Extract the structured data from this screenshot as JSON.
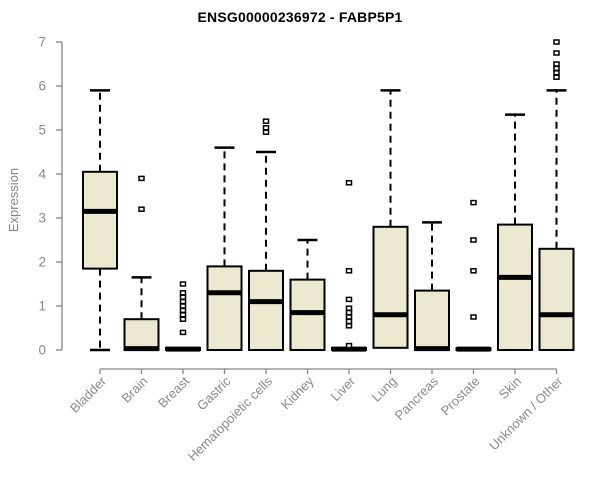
{
  "chart_data": {
    "type": "boxplot",
    "title": "ENSG00000236972 - FABP5P1",
    "ylabel": "Expression",
    "xlabel": "",
    "ylim": [
      0,
      7
    ],
    "yticks": [
      0,
      1,
      2,
      3,
      4,
      5,
      6,
      7
    ],
    "grid": false,
    "legend": null,
    "colors": {
      "box_fill": "#EDE8D0",
      "box_border": "#000000",
      "median": "#000000",
      "whisker": "#000000",
      "outlier_fill": "#ffffff",
      "axis": "#868686",
      "tick_text": "#8a8a8a",
      "title_text": "#000000"
    },
    "categories": [
      "Bladder",
      "Brain",
      "Breast",
      "Gastric",
      "Hematopoietic cells",
      "Kidney",
      "Liver",
      "Lung",
      "Pancreas",
      "Prostate",
      "Skin",
      "Unknown / Other"
    ],
    "boxes": [
      {
        "category": "Bladder",
        "min": 0,
        "q1": 1.85,
        "median": 3.15,
        "q3": 4.05,
        "max": 5.9,
        "outliers": []
      },
      {
        "category": "Brain",
        "min": 0,
        "q1": 0,
        "median": 0.03,
        "q3": 0.7,
        "max": 1.65,
        "outliers": [
          3.9,
          3.2
        ]
      },
      {
        "category": "Breast",
        "min": 0,
        "q1": 0,
        "median": 0.02,
        "q3": 0.05,
        "max": 0.05,
        "outliers": [
          1.5,
          1.3,
          1.2,
          1.1,
          1.0,
          0.9,
          0.8,
          0.7,
          0.4
        ]
      },
      {
        "category": "Gastric",
        "min": 0,
        "q1": 0,
        "median": 1.3,
        "q3": 1.9,
        "max": 4.6,
        "outliers": []
      },
      {
        "category": "Hematopoietic cells",
        "min": 0,
        "q1": 0,
        "median": 1.1,
        "q3": 1.8,
        "max": 4.5,
        "outliers": [
          5.2,
          5.05,
          4.95
        ]
      },
      {
        "category": "Kidney",
        "min": 0,
        "q1": 0,
        "median": 0.85,
        "q3": 1.6,
        "max": 2.5,
        "outliers": []
      },
      {
        "category": "Liver",
        "min": 0,
        "q1": 0,
        "median": 0.02,
        "q3": 0.05,
        "max": 0.05,
        "outliers": [
          3.8,
          1.8,
          1.15,
          0.95,
          0.85,
          0.75,
          0.65,
          0.55,
          0.1
        ]
      },
      {
        "category": "Lung",
        "min": 0.05,
        "q1": 0.05,
        "median": 0.8,
        "q3": 2.8,
        "max": 5.9,
        "outliers": []
      },
      {
        "category": "Pancreas",
        "min": 0,
        "q1": 0,
        "median": 0.03,
        "q3": 1.35,
        "max": 2.9,
        "outliers": []
      },
      {
        "category": "Prostate",
        "min": 0,
        "q1": 0,
        "median": 0.02,
        "q3": 0.04,
        "max": 0.04,
        "outliers": [
          3.35,
          2.5,
          1.8,
          0.75
        ]
      },
      {
        "category": "Skin",
        "min": 0,
        "q1": 0,
        "median": 1.65,
        "q3": 2.85,
        "max": 5.35,
        "outliers": []
      },
      {
        "category": "Unknown / Other",
        "min": 0,
        "q1": 0,
        "median": 0.8,
        "q3": 2.3,
        "max": 5.9,
        "outliers": [
          7.0,
          6.75,
          6.5,
          6.4,
          6.3,
          6.2
        ]
      }
    ]
  }
}
